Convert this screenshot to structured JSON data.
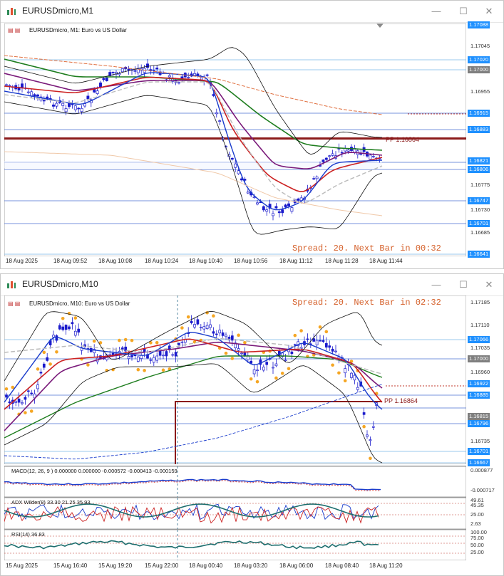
{
  "window1": {
    "title": "EURUSDmicro,M1",
    "chart_header": "EURUSDmicro, M1:  Euro vs US Dollar",
    "spread": "Spread: 20. Next Bar in 00:32",
    "pp_label": "PP 1.16864",
    "price_labels": [
      {
        "text": "1.17088",
        "style": "hl"
      },
      {
        "text": "1.17045",
        "style": "plain"
      },
      {
        "text": "1.17020",
        "style": "hl"
      },
      {
        "text": "1.17000",
        "style": "gray"
      },
      {
        "text": "1.16955",
        "style": "plain"
      },
      {
        "text": "1.16915",
        "style": "hl"
      },
      {
        "text": "1.16883",
        "style": "hl"
      },
      {
        "text": "1.16821",
        "style": "hl"
      },
      {
        "text": "1.16806",
        "style": "hl"
      },
      {
        "text": "1.16775",
        "style": "plain"
      },
      {
        "text": "1.16747",
        "style": "hl"
      },
      {
        "text": "1.16730",
        "style": "plain"
      },
      {
        "text": "1.16701",
        "style": "hl"
      },
      {
        "text": "1.16685",
        "style": "plain"
      },
      {
        "text": "1.16641",
        "style": "hl"
      }
    ],
    "time_labels": [
      "18 Aug 2025",
      "18 Aug 09:52",
      "18 Aug 10:08",
      "18 Aug 10:24",
      "18 Aug 10:40",
      "18 Aug 10:56",
      "18 Aug 11:12",
      "18 Aug 11:28",
      "18 Aug 11:44"
    ]
  },
  "window2": {
    "title": "EURUSDmicro,M10",
    "chart_header": "EURUSDmicro, M10:  Euro vs US Dollar",
    "spread": "Spread: 20. Next Bar in 02:32",
    "pp_label": "PP 1.16864",
    "price_labels": [
      {
        "text": "1.17185",
        "style": "plain"
      },
      {
        "text": "1.17110",
        "style": "plain"
      },
      {
        "text": "1.17066",
        "style": "hl"
      },
      {
        "text": "1.17035",
        "style": "plain"
      },
      {
        "text": "1.17000",
        "style": "gray"
      },
      {
        "text": "1.16960",
        "style": "plain"
      },
      {
        "text": "1.16922",
        "style": "hl"
      },
      {
        "text": "1.16885",
        "style": "hl"
      },
      {
        "text": "1.16815",
        "style": "gray"
      },
      {
        "text": "1.16796",
        "style": "hl"
      },
      {
        "text": "1.16735",
        "style": "plain"
      },
      {
        "text": "1.16701",
        "style": "hl"
      },
      {
        "text": "1.16667",
        "style": "hl"
      }
    ],
    "macd_header": "MACD(12, 26, 9 ) 0.000000 0.000000 -0.000572 -0.000413 -0.000159",
    "macd_labels": [
      "0.000877",
      "-0.000717"
    ],
    "adx_header": "ADX Wilder(8) 33.30 21.25 35.93",
    "adx_labels": [
      "49.61",
      "45.35",
      "25.00",
      "2.63"
    ],
    "rsi_header": "RSI(14) 36.83",
    "rsi_labels": [
      "100.00",
      "75.00",
      "50.00",
      "25.00"
    ],
    "time_labels": [
      "15 Aug 2025",
      "15 Aug 16:40",
      "15 Aug 19:20",
      "15 Aug 22:00",
      "18 Aug 00:40",
      "18 Aug 03:20",
      "18 Aug 06:00",
      "18 Aug 08:40",
      "18 Aug 11:20"
    ]
  },
  "colors": {
    "price_label_bg": "#1e90ff",
    "price_label_gray": "#7f7f7f",
    "candles": "#1a1acc",
    "pp_line": "#8b1a1a"
  }
}
